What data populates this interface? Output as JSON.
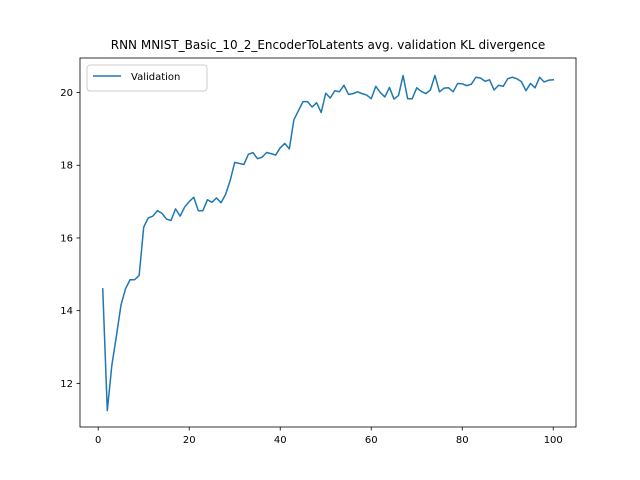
{
  "chart_data": {
    "type": "line",
    "title": "RNN MNIST_Basic_10_2_EncoderToLatents avg. validation KL divergence",
    "xlabel": "",
    "ylabel": "",
    "xlim": [
      -4,
      105
    ],
    "ylim": [
      10.8,
      20.95
    ],
    "xticks": [
      0,
      20,
      40,
      60,
      80,
      100
    ],
    "yticks": [
      12,
      14,
      16,
      18,
      20
    ],
    "grid": false,
    "legend_position": "top-left",
    "colors": {
      "series": "#1f77b4",
      "axes": "#000000",
      "background": "#ffffff"
    },
    "series": [
      {
        "name": "Validation",
        "x": [
          1,
          2,
          3,
          4,
          5,
          6,
          7,
          8,
          9,
          10,
          11,
          12,
          13,
          14,
          15,
          16,
          17,
          18,
          19,
          20,
          21,
          22,
          23,
          24,
          25,
          26,
          27,
          28,
          29,
          30,
          31,
          32,
          33,
          34,
          35,
          36,
          37,
          38,
          39,
          40,
          41,
          42,
          43,
          44,
          45,
          46,
          47,
          48,
          49,
          50,
          51,
          52,
          53,
          54,
          55,
          56,
          57,
          58,
          59,
          60,
          61,
          62,
          63,
          64,
          65,
          66,
          67,
          68,
          69,
          70,
          71,
          72,
          73,
          74,
          75,
          76,
          77,
          78,
          79,
          80,
          81,
          82,
          83,
          84,
          85,
          86,
          87,
          88,
          89,
          90,
          91,
          92,
          93,
          94,
          95,
          96,
          97,
          98,
          99,
          100
        ],
        "y": [
          14.6,
          11.25,
          12.5,
          13.3,
          14.15,
          14.6,
          14.85,
          14.85,
          14.97,
          16.3,
          16.55,
          16.6,
          16.75,
          16.68,
          16.52,
          16.48,
          16.8,
          16.6,
          16.85,
          17.0,
          17.12,
          16.75,
          16.75,
          17.05,
          16.98,
          17.1,
          16.97,
          17.2,
          17.58,
          18.08,
          18.05,
          18.02,
          18.3,
          18.35,
          18.18,
          18.22,
          18.35,
          18.32,
          18.28,
          18.48,
          18.6,
          18.45,
          19.25,
          19.5,
          19.75,
          19.75,
          19.6,
          19.72,
          19.45,
          19.98,
          19.85,
          20.05,
          20.02,
          20.2,
          19.95,
          19.97,
          20.02,
          19.97,
          19.93,
          19.83,
          20.17,
          20.0,
          19.88,
          20.14,
          19.82,
          19.92,
          20.47,
          19.83,
          19.83,
          20.13,
          20.03,
          19.97,
          20.07,
          20.47,
          20.02,
          20.12,
          20.13,
          20.02,
          20.25,
          20.24,
          20.19,
          20.23,
          20.42,
          20.4,
          20.31,
          20.35,
          20.07,
          20.2,
          20.17,
          20.38,
          20.42,
          20.38,
          20.3,
          20.05,
          20.25,
          20.13,
          20.42,
          20.29,
          20.34,
          20.35
        ]
      }
    ]
  }
}
